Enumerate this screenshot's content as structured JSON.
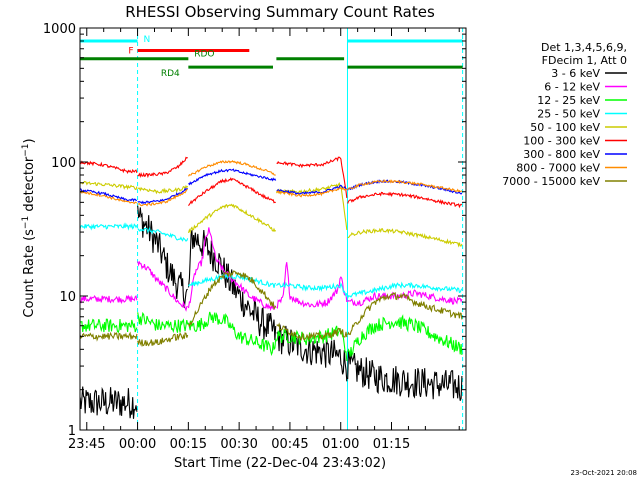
{
  "chart_data": {
    "type": "line",
    "title": "RHESSI Observing Summary Count Rates",
    "xlabel": "Start Time (22-Dec-04 23:43:02)",
    "ylabel": "Count Rate (s⁻¹ detector⁻¹)",
    "ylabel_main": "Count Rate (s",
    "ylabel_sup1": "−1",
    "ylabel_mid": " detector",
    "ylabel_sup2": "−1",
    "ylabel_end": ")",
    "yscale": "log",
    "ylim": [
      1,
      1000
    ],
    "xlim_minutes": [
      -17,
      97
    ],
    "y_ticks": [
      {
        "value": 1,
        "label": "1"
      },
      {
        "value": 10,
        "label": "10"
      },
      {
        "value": 100,
        "label": "100"
      },
      {
        "value": 1000,
        "label": "1000"
      }
    ],
    "x_ticks": [
      {
        "minutes": -15,
        "label": "23:45"
      },
      {
        "minutes": 0,
        "label": "00:00"
      },
      {
        "minutes": 15,
        "label": "00:15"
      },
      {
        "minutes": 30,
        "label": "00:30"
      },
      {
        "minutes": 45,
        "label": "00:45"
      },
      {
        "minutes": 60,
        "label": "01:00"
      },
      {
        "minutes": 75,
        "label": "01:15"
      }
    ],
    "legend_header": [
      "Det 1,3,4,5,6,9,",
      "FDecim 1, Att 0"
    ],
    "legend_placement": "right",
    "timestamp": "23-Oct-2021 20:08",
    "flags": [
      {
        "label": "N",
        "color": "#00ffff",
        "value": 800,
        "segments": [
          [
            -17,
            0
          ],
          [
            62,
            96
          ]
        ]
      },
      {
        "label": "F",
        "color": "#ff0000",
        "value": 680,
        "segments": [
          [
            0,
            33
          ]
        ]
      },
      {
        "label": "RDO",
        "color": "#008000",
        "value": 590,
        "segments": [
          [
            -17,
            15
          ],
          [
            41,
            61
          ]
        ]
      },
      {
        "label": "RD4",
        "color": "#008000",
        "value": 510,
        "segments": [
          [
            15,
            40
          ],
          [
            62,
            96
          ]
        ]
      }
    ],
    "night_boundaries": [
      {
        "minutes": -17,
        "style": "solid"
      },
      {
        "minutes": 0,
        "style": "dashed"
      },
      {
        "minutes": 62,
        "style": "solid"
      },
      {
        "minutes": 96,
        "style": "dashed"
      }
    ],
    "breaks": [
      -17,
      0,
      15,
      41,
      62,
      96
    ],
    "series": [
      {
        "name": "3 - 6 keV",
        "color": "#000000",
        "noise": 0.28,
        "points": [
          [
            -17,
            1.6
          ],
          [
            -5,
            1.6
          ],
          [
            0,
            1.6
          ],
          [
            0,
            40
          ],
          [
            3,
            32
          ],
          [
            6,
            24
          ],
          [
            9,
            16
          ],
          [
            12,
            12
          ],
          [
            15,
            10
          ],
          [
            16,
            28
          ],
          [
            18,
            26
          ],
          [
            21,
            22
          ],
          [
            24,
            18
          ],
          [
            27,
            13
          ],
          [
            30,
            10
          ],
          [
            33,
            8
          ],
          [
            36,
            6.5
          ],
          [
            40,
            5.5
          ],
          [
            41,
            5
          ],
          [
            45,
            4.5
          ],
          [
            50,
            4
          ],
          [
            55,
            3.8
          ],
          [
            60,
            3.5
          ],
          [
            62,
            3
          ],
          [
            70,
            2.5
          ],
          [
            80,
            2.3
          ],
          [
            96,
            2.1
          ]
        ]
      },
      {
        "name": "6 - 12 keV",
        "color": "#ff00ff",
        "noise": 0.06,
        "points": [
          [
            -17,
            9.5
          ],
          [
            0,
            9.5
          ],
          [
            0,
            18
          ],
          [
            3,
            16
          ],
          [
            6,
            13
          ],
          [
            9,
            11
          ],
          [
            12,
            9
          ],
          [
            15,
            8
          ],
          [
            17,
            15
          ],
          [
            19,
            18
          ],
          [
            20,
            26
          ],
          [
            21,
            31
          ],
          [
            22,
            26
          ],
          [
            23,
            19
          ],
          [
            25,
            16
          ],
          [
            27,
            14
          ],
          [
            30,
            12
          ],
          [
            33,
            10
          ],
          [
            36,
            9
          ],
          [
            40,
            8
          ],
          [
            41,
            8.5
          ],
          [
            43,
            9.5
          ],
          [
            44,
            18
          ],
          [
            45,
            10
          ],
          [
            48,
            9
          ],
          [
            52,
            8.5
          ],
          [
            56,
            9
          ],
          [
            59,
            11
          ],
          [
            60,
            14
          ],
          [
            61,
            11
          ],
          [
            62,
            9
          ],
          [
            66,
            9
          ],
          [
            70,
            10
          ],
          [
            74,
            10
          ],
          [
            78,
            10
          ],
          [
            82,
            10.5
          ],
          [
            86,
            10
          ],
          [
            90,
            9.5
          ],
          [
            96,
            9
          ]
        ]
      },
      {
        "name": "12 - 25 keV",
        "color": "#00ff00",
        "noise": 0.12,
        "points": [
          [
            -17,
            6
          ],
          [
            0,
            6
          ],
          [
            0,
            7
          ],
          [
            6,
            6
          ],
          [
            12,
            6
          ],
          [
            15,
            6
          ],
          [
            18,
            6
          ],
          [
            22,
            7
          ],
          [
            26,
            6.5
          ],
          [
            30,
            5
          ],
          [
            35,
            4.5
          ],
          [
            40,
            4
          ],
          [
            41,
            5
          ],
          [
            45,
            5
          ],
          [
            50,
            4.8
          ],
          [
            55,
            5
          ],
          [
            60,
            5.5
          ],
          [
            62,
            3.5
          ],
          [
            66,
            5
          ],
          [
            70,
            6
          ],
          [
            76,
            6.5
          ],
          [
            82,
            6
          ],
          [
            88,
            5
          ],
          [
            96,
            4
          ]
        ]
      },
      {
        "name": "25 - 50 keV",
        "color": "#00ffff",
        "noise": 0.04,
        "points": [
          [
            -17,
            33
          ],
          [
            0,
            33
          ],
          [
            0,
            32
          ],
          [
            6,
            30
          ],
          [
            10,
            28
          ],
          [
            15,
            26
          ],
          [
            15,
            12
          ],
          [
            20,
            13
          ],
          [
            25,
            14
          ],
          [
            30,
            14
          ],
          [
            35,
            13
          ],
          [
            40,
            12
          ],
          [
            41,
            12
          ],
          [
            45,
            12
          ],
          [
            50,
            11.5
          ],
          [
            55,
            11.5
          ],
          [
            60,
            12
          ],
          [
            62,
            10
          ],
          [
            70,
            11
          ],
          [
            76,
            12
          ],
          [
            82,
            12
          ],
          [
            88,
            11.5
          ],
          [
            96,
            11
          ]
        ]
      },
      {
        "name": "50 - 100 keV",
        "color": "#cccc00",
        "noise": 0.03,
        "points": [
          [
            -17,
            70
          ],
          [
            -10,
            68
          ],
          [
            0,
            64
          ],
          [
            6,
            60
          ],
          [
            12,
            62
          ],
          [
            15,
            66
          ],
          [
            15,
            30
          ],
          [
            20,
            38
          ],
          [
            25,
            46
          ],
          [
            28,
            48
          ],
          [
            32,
            42
          ],
          [
            38,
            34
          ],
          [
            41,
            30
          ],
          [
            41,
            60
          ],
          [
            48,
            60
          ],
          [
            55,
            63
          ],
          [
            60,
            68
          ],
          [
            62,
            28
          ],
          [
            66,
            30
          ],
          [
            72,
            31
          ],
          [
            78,
            30
          ],
          [
            84,
            28
          ],
          [
            90,
            26
          ],
          [
            96,
            24
          ]
        ]
      },
      {
        "name": "100 - 300 keV",
        "color": "#ff0000",
        "noise": 0.025,
        "points": [
          [
            -17,
            100
          ],
          [
            -10,
            95
          ],
          [
            -3,
            85
          ],
          [
            3,
            80
          ],
          [
            8,
            82
          ],
          [
            12,
            92
          ],
          [
            15,
            110
          ],
          [
            15,
            48
          ],
          [
            20,
            60
          ],
          [
            25,
            72
          ],
          [
            28,
            74
          ],
          [
            32,
            66
          ],
          [
            38,
            54
          ],
          [
            41,
            50
          ],
          [
            41,
            100
          ],
          [
            48,
            94
          ],
          [
            55,
            96
          ],
          [
            60,
            108
          ],
          [
            62,
            50
          ],
          [
            66,
            55
          ],
          [
            72,
            58
          ],
          [
            78,
            57
          ],
          [
            84,
            54
          ],
          [
            90,
            50
          ],
          [
            96,
            47
          ]
        ]
      },
      {
        "name": "300 - 800 keV",
        "color": "#0000ff",
        "noise": 0.02,
        "points": [
          [
            -17,
            62
          ],
          [
            -10,
            58
          ],
          [
            -3,
            52
          ],
          [
            3,
            50
          ],
          [
            8,
            52
          ],
          [
            12,
            58
          ],
          [
            15,
            64
          ],
          [
            15,
            68
          ],
          [
            20,
            80
          ],
          [
            25,
            86
          ],
          [
            28,
            87
          ],
          [
            32,
            82
          ],
          [
            38,
            76
          ],
          [
            41,
            73
          ],
          [
            41,
            62
          ],
          [
            48,
            58
          ],
          [
            55,
            60
          ],
          [
            60,
            66
          ],
          [
            62,
            62
          ],
          [
            66,
            68
          ],
          [
            72,
            72
          ],
          [
            78,
            71
          ],
          [
            84,
            67
          ],
          [
            90,
            63
          ],
          [
            96,
            58
          ]
        ]
      },
      {
        "name": "800 - 7000 keV",
        "color": "#ff8c00",
        "noise": 0.02,
        "points": [
          [
            -17,
            60
          ],
          [
            -10,
            56
          ],
          [
            -3,
            50
          ],
          [
            3,
            48
          ],
          [
            8,
            50
          ],
          [
            12,
            56
          ],
          [
            15,
            62
          ],
          [
            15,
            78
          ],
          [
            20,
            92
          ],
          [
            25,
            100
          ],
          [
            28,
            101
          ],
          [
            32,
            96
          ],
          [
            38,
            86
          ],
          [
            41,
            80
          ],
          [
            41,
            60
          ],
          [
            48,
            56
          ],
          [
            55,
            58
          ],
          [
            60,
            64
          ],
          [
            62,
            62
          ],
          [
            66,
            68
          ],
          [
            72,
            72
          ],
          [
            78,
            71
          ],
          [
            84,
            68
          ],
          [
            90,
            64
          ],
          [
            96,
            60
          ]
        ]
      },
      {
        "name": "7000 - 15000 keV",
        "color": "#808000",
        "noise": 0.06,
        "points": [
          [
            -17,
            5
          ],
          [
            0,
            5
          ],
          [
            0,
            4.5
          ],
          [
            6,
            4.5
          ],
          [
            12,
            5
          ],
          [
            15,
            5
          ],
          [
            15,
            6
          ],
          [
            18,
            8
          ],
          [
            22,
            12
          ],
          [
            26,
            14.5
          ],
          [
            30,
            15
          ],
          [
            34,
            13
          ],
          [
            38,
            10
          ],
          [
            41,
            8
          ],
          [
            41,
            6
          ],
          [
            48,
            5
          ],
          [
            55,
            5
          ],
          [
            60,
            5.5
          ],
          [
            62,
            5
          ],
          [
            66,
            7
          ],
          [
            70,
            9
          ],
          [
            74,
            10
          ],
          [
            78,
            10
          ],
          [
            82,
            9
          ],
          [
            88,
            8
          ],
          [
            96,
            7
          ]
        ]
      }
    ]
  }
}
